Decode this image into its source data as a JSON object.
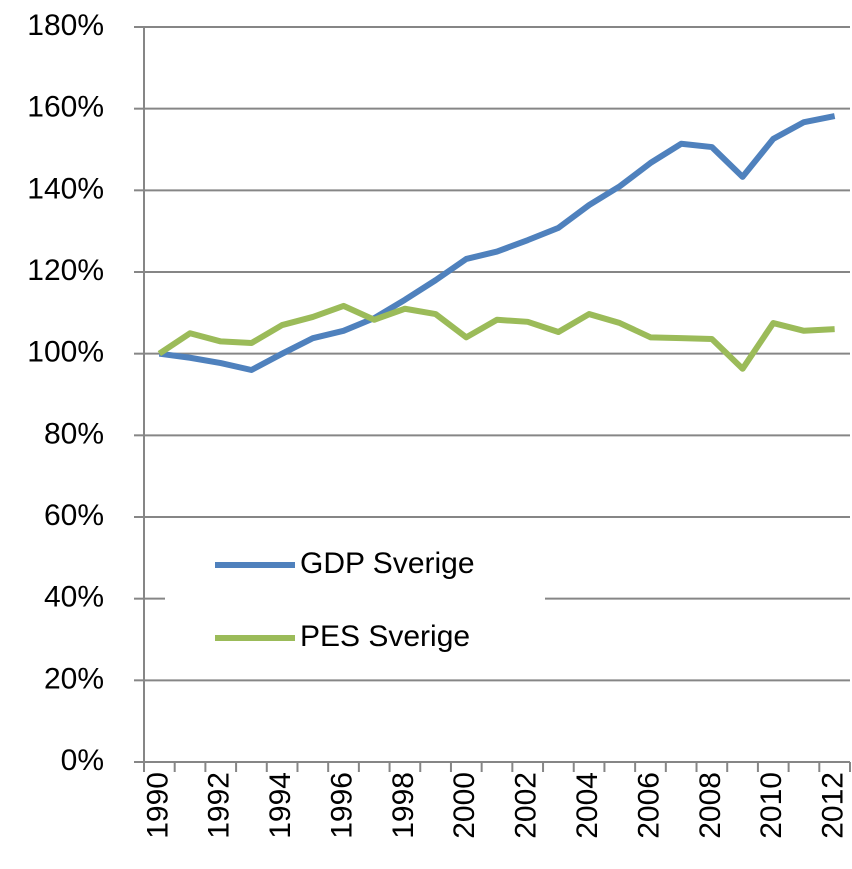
{
  "chart_data": {
    "type": "line",
    "x": [
      1990,
      1991,
      1992,
      1993,
      1994,
      1995,
      1996,
      1997,
      1998,
      1999,
      2000,
      2001,
      2002,
      2003,
      2004,
      2005,
      2006,
      2007,
      2008,
      2009,
      2010,
      2011,
      2012
    ],
    "xlim": [
      1989.5,
      2012.5
    ],
    "xticks": [
      1990,
      1992,
      1994,
      1996,
      1998,
      2000,
      2002,
      2004,
      2006,
      2008,
      2010,
      2012
    ],
    "series": [
      {
        "name": "GDP Sverige",
        "color": "#4f81bd",
        "values": [
          100,
          99,
          97.7,
          96,
          100,
          103.8,
          105.6,
          108.7,
          113.2,
          118,
          123.2,
          125,
          127.8,
          130.8,
          136.4,
          141,
          146.7,
          151.4,
          150.6,
          143.3,
          152.6,
          156.7,
          158.2
        ]
      },
      {
        "name": "PES Sverige",
        "color": "#9bbb59",
        "values": [
          100,
          105,
          103,
          102.6,
          107,
          109,
          111.7,
          108.3,
          111,
          109.7,
          104,
          108.3,
          107.8,
          105.3,
          109.7,
          107.5,
          104,
          103.8,
          103.6,
          96.3,
          107.5,
          105.6,
          106
        ]
      }
    ],
    "ylim": [
      0,
      180
    ],
    "yticks": [
      {
        "value": 0,
        "label": "0%"
      },
      {
        "value": 20,
        "label": "20%"
      },
      {
        "value": 40,
        "label": "40%"
      },
      {
        "value": 60,
        "label": "60%"
      },
      {
        "value": 80,
        "label": "80%"
      },
      {
        "value": 100,
        "label": "100%"
      },
      {
        "value": 120,
        "label": "120%"
      },
      {
        "value": 140,
        "label": "140%"
      },
      {
        "value": 160,
        "label": "160%"
      },
      {
        "value": 180,
        "label": "180%"
      }
    ],
    "grid": true
  }
}
